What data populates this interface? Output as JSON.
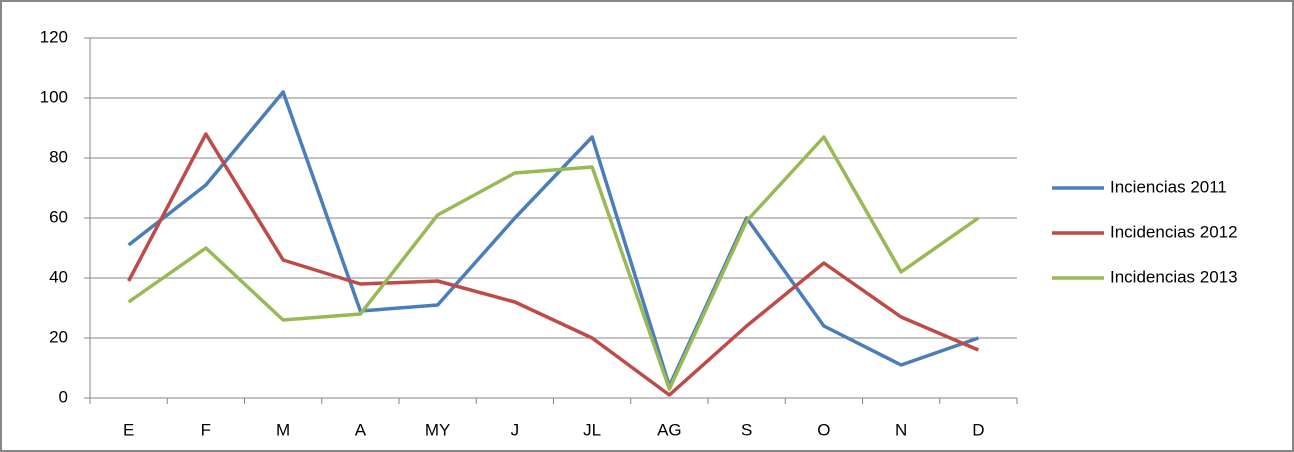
{
  "chart_data": {
    "type": "line",
    "categories": [
      "E",
      "F",
      "M",
      "A",
      "MY",
      "J",
      "JL",
      "AG",
      "S",
      "O",
      "N",
      "D"
    ],
    "series": [
      {
        "name": "Inciencias 2011",
        "color": "#4a7ebb",
        "values": [
          51,
          71,
          102,
          29,
          31,
          60,
          87,
          4,
          60,
          24,
          11,
          20
        ]
      },
      {
        "name": "Incidencias 2012",
        "color": "#be4b48",
        "values": [
          39,
          88,
          46,
          38,
          39,
          32,
          20,
          1,
          24,
          45,
          27,
          16
        ]
      },
      {
        "name": "Incidencias 2013",
        "color": "#98b954",
        "values": [
          32,
          50,
          26,
          28,
          61,
          75,
          77,
          3,
          59,
          87,
          42,
          60
        ]
      }
    ],
    "ylim": [
      0,
      120
    ],
    "yticks": [
      0,
      20,
      40,
      60,
      80,
      100,
      120
    ],
    "grid": true,
    "legend": "right"
  }
}
